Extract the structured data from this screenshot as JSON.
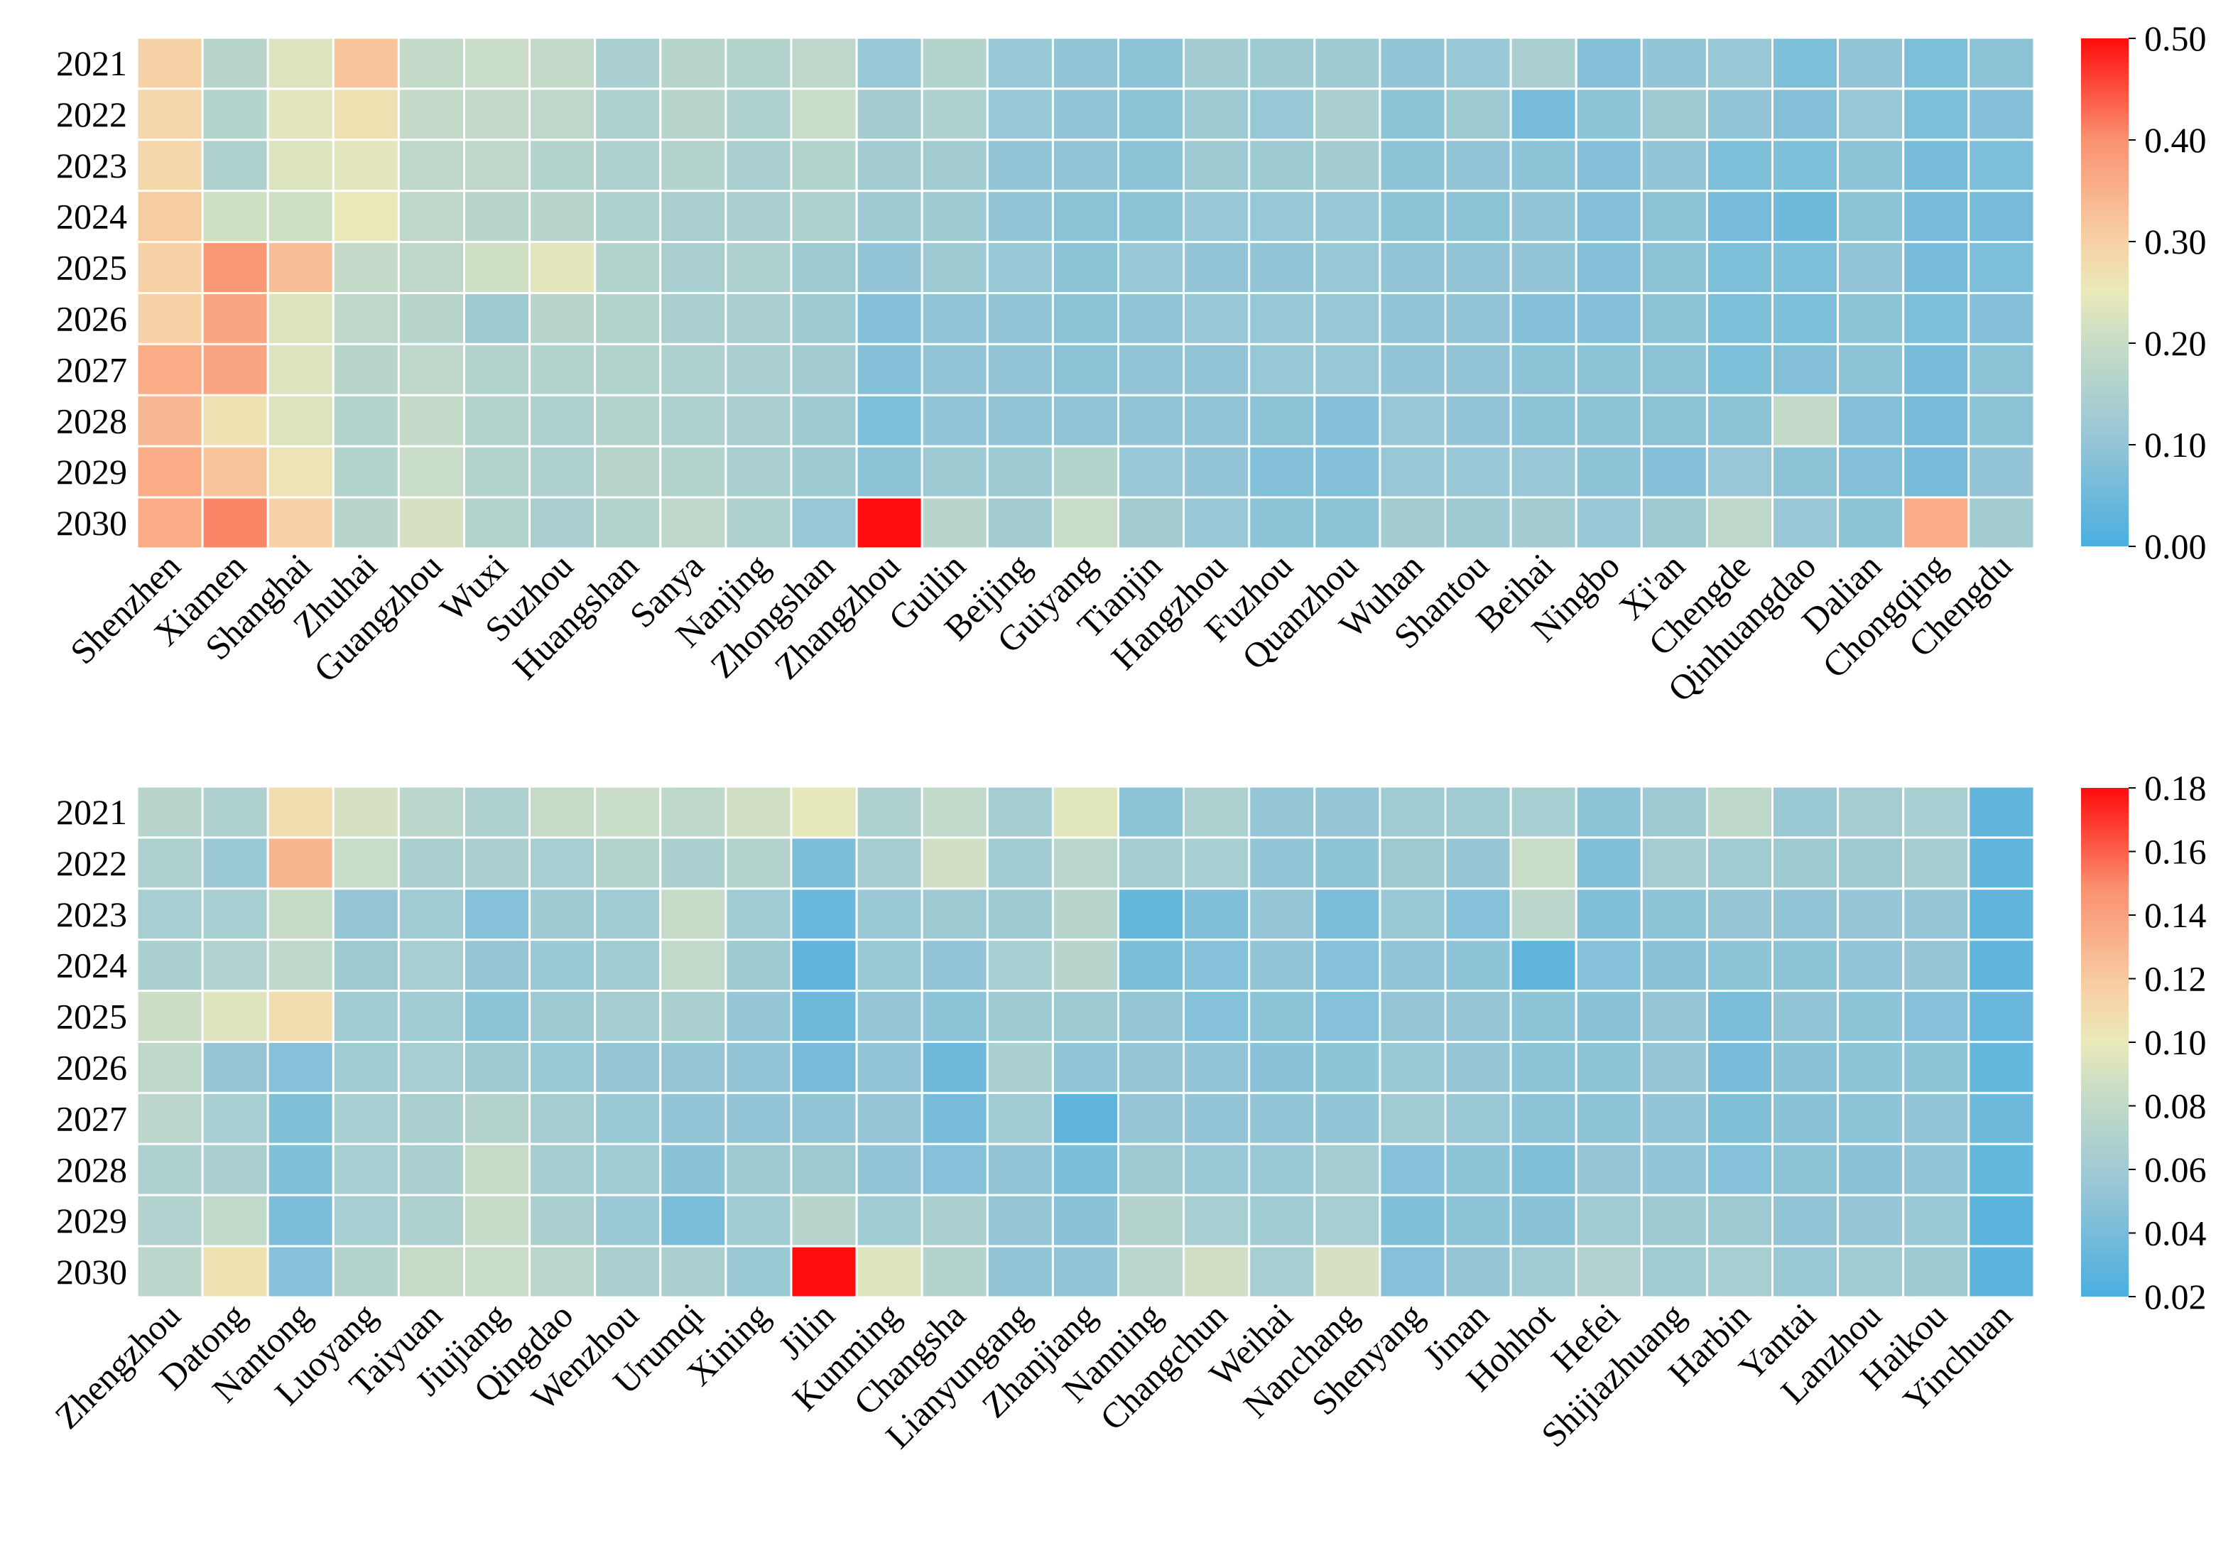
{
  "chart_data": [
    {
      "type": "heatmap",
      "title": "",
      "years": [
        "2021",
        "2022",
        "2023",
        "2024",
        "2025",
        "2026",
        "2027",
        "2028",
        "2029",
        "2030"
      ],
      "cities": [
        "Shenzhen",
        "Xiamen",
        "Shanghai",
        "Zhuhai",
        "Guangzhou",
        "Wuxi",
        "Suzhou",
        "Huangshan",
        "Sanya",
        "Nanjing",
        "Zhongshan",
        "Zhangzhou",
        "Guilin",
        "Beijing",
        "Guiyang",
        "Tianjin",
        "Hangzhou",
        "Fuzhou",
        "Quanzhou",
        "Wuhan",
        "Shantou",
        "Beihai",
        "Ningbo",
        "Xi'an",
        "Chengde",
        "Qinhuangdao",
        "Dalian",
        "Chongqing",
        "Chengdu"
      ],
      "colorbar": {
        "min": 0.0,
        "max": 0.5,
        "ticks": [
          "0.00",
          "0.10",
          "0.20",
          "0.30",
          "0.40",
          "0.50"
        ]
      },
      "values": [
        [
          0.3,
          0.17,
          0.23,
          0.32,
          0.19,
          0.2,
          0.19,
          0.14,
          0.17,
          0.16,
          0.18,
          0.11,
          0.16,
          0.11,
          0.1,
          0.09,
          0.13,
          0.12,
          0.12,
          0.1,
          0.11,
          0.14,
          0.08,
          0.1,
          0.11,
          0.07,
          0.1,
          0.07,
          0.09
        ],
        [
          0.29,
          0.16,
          0.24,
          0.27,
          0.19,
          0.19,
          0.18,
          0.15,
          0.17,
          0.15,
          0.2,
          0.13,
          0.15,
          0.11,
          0.1,
          0.09,
          0.12,
          0.11,
          0.14,
          0.09,
          0.12,
          0.06,
          0.09,
          0.12,
          0.1,
          0.08,
          0.11,
          0.07,
          0.08
        ],
        [
          0.29,
          0.15,
          0.23,
          0.24,
          0.18,
          0.18,
          0.16,
          0.15,
          0.16,
          0.14,
          0.16,
          0.13,
          0.13,
          0.1,
          0.1,
          0.09,
          0.12,
          0.12,
          0.13,
          0.09,
          0.1,
          0.09,
          0.08,
          0.1,
          0.07,
          0.07,
          0.09,
          0.06,
          0.07
        ],
        [
          0.31,
          0.21,
          0.21,
          0.25,
          0.18,
          0.17,
          0.17,
          0.15,
          0.14,
          0.14,
          0.15,
          0.12,
          0.12,
          0.1,
          0.09,
          0.09,
          0.11,
          0.11,
          0.11,
          0.09,
          0.09,
          0.1,
          0.08,
          0.09,
          0.06,
          0.05,
          0.09,
          0.06,
          0.06
        ],
        [
          0.3,
          0.39,
          0.33,
          0.19,
          0.18,
          0.21,
          0.24,
          0.16,
          0.14,
          0.15,
          0.12,
          0.1,
          0.12,
          0.11,
          0.09,
          0.11,
          0.1,
          0.1,
          0.11,
          0.1,
          0.1,
          0.1,
          0.08,
          0.09,
          0.07,
          0.07,
          0.1,
          0.06,
          0.07
        ],
        [
          0.3,
          0.37,
          0.23,
          0.18,
          0.17,
          0.12,
          0.17,
          0.16,
          0.14,
          0.14,
          0.12,
          0.08,
          0.1,
          0.1,
          0.09,
          0.1,
          0.11,
          0.11,
          0.11,
          0.1,
          0.1,
          0.08,
          0.08,
          0.09,
          0.07,
          0.07,
          0.09,
          0.07,
          0.08
        ],
        [
          0.36,
          0.37,
          0.23,
          0.17,
          0.18,
          0.16,
          0.16,
          0.16,
          0.15,
          0.14,
          0.13,
          0.08,
          0.1,
          0.1,
          0.09,
          0.1,
          0.1,
          0.11,
          0.11,
          0.1,
          0.1,
          0.09,
          0.09,
          0.09,
          0.07,
          0.08,
          0.09,
          0.06,
          0.09
        ],
        [
          0.34,
          0.27,
          0.23,
          0.16,
          0.19,
          0.16,
          0.15,
          0.16,
          0.15,
          0.14,
          0.12,
          0.07,
          0.1,
          0.1,
          0.1,
          0.1,
          0.1,
          0.09,
          0.08,
          0.11,
          0.1,
          0.09,
          0.09,
          0.09,
          0.09,
          0.19,
          0.08,
          0.06,
          0.09
        ],
        [
          0.36,
          0.32,
          0.26,
          0.16,
          0.2,
          0.16,
          0.15,
          0.17,
          0.16,
          0.14,
          0.12,
          0.09,
          0.12,
          0.12,
          0.16,
          0.11,
          0.1,
          0.08,
          0.08,
          0.11,
          0.11,
          0.11,
          0.09,
          0.08,
          0.11,
          0.09,
          0.08,
          0.06,
          0.1
        ],
        [
          0.36,
          0.41,
          0.3,
          0.17,
          0.22,
          0.16,
          0.14,
          0.16,
          0.18,
          0.15,
          0.11,
          0.5,
          0.17,
          0.13,
          0.2,
          0.13,
          0.11,
          0.09,
          0.09,
          0.13,
          0.12,
          0.13,
          0.11,
          0.12,
          0.18,
          0.11,
          0.09,
          0.36,
          0.13
        ]
      ]
    },
    {
      "type": "heatmap",
      "title": "",
      "years": [
        "2021",
        "2022",
        "2023",
        "2024",
        "2025",
        "2026",
        "2027",
        "2028",
        "2029",
        "2030"
      ],
      "cities": [
        "Zhengzhou",
        "Datong",
        "Nantong",
        "Luoyang",
        "Taiyuan",
        "Jiujiang",
        "Qingdao",
        "Wenzhou",
        "Urumqi",
        "Xining",
        "Jilin",
        "Kunming",
        "Changsha",
        "Lianyungang",
        "Zhanjiang",
        "Nanning",
        "Changchun",
        "Weihai",
        "Nanchang",
        "Shenyang",
        "Jinan",
        "Hohhot",
        "Hefei",
        "Shijiazhuang",
        "Harbin",
        "Yantai",
        "Lanzhou",
        "Haikou",
        "Yinchuan"
      ],
      "colorbar": {
        "min": 0.02,
        "max": 0.18,
        "ticks": [
          "0.02",
          "0.04",
          "0.06",
          "0.08",
          "0.10",
          "0.12",
          "0.14",
          "0.16",
          "0.18"
        ]
      },
      "values": [
        [
          0.074,
          0.068,
          0.108,
          0.09,
          0.076,
          0.068,
          0.082,
          0.084,
          0.078,
          0.088,
          0.098,
          0.068,
          0.08,
          0.062,
          0.096,
          0.05,
          0.068,
          0.054,
          0.054,
          0.06,
          0.06,
          0.064,
          0.05,
          0.058,
          0.078,
          0.056,
          0.062,
          0.064,
          0.03
        ],
        [
          0.068,
          0.056,
          0.13,
          0.084,
          0.066,
          0.066,
          0.064,
          0.072,
          0.066,
          0.072,
          0.042,
          0.062,
          0.088,
          0.06,
          0.076,
          0.062,
          0.064,
          0.052,
          0.05,
          0.058,
          0.054,
          0.084,
          0.044,
          0.062,
          0.06,
          0.058,
          0.058,
          0.062,
          0.03
        ],
        [
          0.064,
          0.064,
          0.082,
          0.054,
          0.06,
          0.046,
          0.058,
          0.06,
          0.082,
          0.06,
          0.034,
          0.056,
          0.058,
          0.058,
          0.074,
          0.032,
          0.044,
          0.054,
          0.042,
          0.056,
          0.046,
          0.076,
          0.044,
          0.05,
          0.054,
          0.052,
          0.054,
          0.054,
          0.03
        ],
        [
          0.066,
          0.07,
          0.078,
          0.058,
          0.064,
          0.054,
          0.056,
          0.06,
          0.08,
          0.058,
          0.03,
          0.056,
          0.052,
          0.064,
          0.074,
          0.042,
          0.046,
          0.052,
          0.046,
          0.052,
          0.05,
          0.03,
          0.046,
          0.048,
          0.05,
          0.05,
          0.052,
          0.054,
          0.03
        ],
        [
          0.086,
          0.094,
          0.108,
          0.06,
          0.06,
          0.05,
          0.058,
          0.062,
          0.066,
          0.054,
          0.036,
          0.054,
          0.05,
          0.058,
          0.058,
          0.054,
          0.046,
          0.05,
          0.046,
          0.054,
          0.054,
          0.05,
          0.048,
          0.054,
          0.042,
          0.052,
          0.05,
          0.046,
          0.034
        ],
        [
          0.078,
          0.054,
          0.046,
          0.06,
          0.064,
          0.058,
          0.056,
          0.054,
          0.054,
          0.052,
          0.04,
          0.052,
          0.036,
          0.066,
          0.052,
          0.054,
          0.052,
          0.048,
          0.05,
          0.056,
          0.054,
          0.05,
          0.05,
          0.054,
          0.04,
          0.048,
          0.05,
          0.05,
          0.032
        ],
        [
          0.076,
          0.064,
          0.044,
          0.064,
          0.066,
          0.072,
          0.062,
          0.056,
          0.052,
          0.052,
          0.052,
          0.054,
          0.04,
          0.06,
          0.03,
          0.054,
          0.052,
          0.052,
          0.052,
          0.06,
          0.056,
          0.05,
          0.05,
          0.052,
          0.044,
          0.048,
          0.05,
          0.052,
          0.036
        ],
        [
          0.068,
          0.066,
          0.044,
          0.064,
          0.066,
          0.082,
          0.062,
          0.06,
          0.048,
          0.058,
          0.058,
          0.052,
          0.046,
          0.052,
          0.042,
          0.058,
          0.056,
          0.056,
          0.062,
          0.046,
          0.05,
          0.044,
          0.054,
          0.052,
          0.046,
          0.05,
          0.048,
          0.052,
          0.032
        ],
        [
          0.07,
          0.08,
          0.042,
          0.064,
          0.068,
          0.082,
          0.066,
          0.056,
          0.042,
          0.06,
          0.074,
          0.06,
          0.066,
          0.054,
          0.048,
          0.072,
          0.064,
          0.06,
          0.064,
          0.044,
          0.05,
          0.048,
          0.06,
          0.058,
          0.058,
          0.052,
          0.054,
          0.056,
          0.028
        ],
        [
          0.076,
          0.106,
          0.046,
          0.072,
          0.082,
          0.084,
          0.076,
          0.066,
          0.066,
          0.056,
          0.18,
          0.094,
          0.072,
          0.052,
          0.052,
          0.076,
          0.088,
          0.064,
          0.09,
          0.046,
          0.054,
          0.06,
          0.07,
          0.06,
          0.064,
          0.056,
          0.06,
          0.058,
          0.028
        ]
      ]
    }
  ]
}
